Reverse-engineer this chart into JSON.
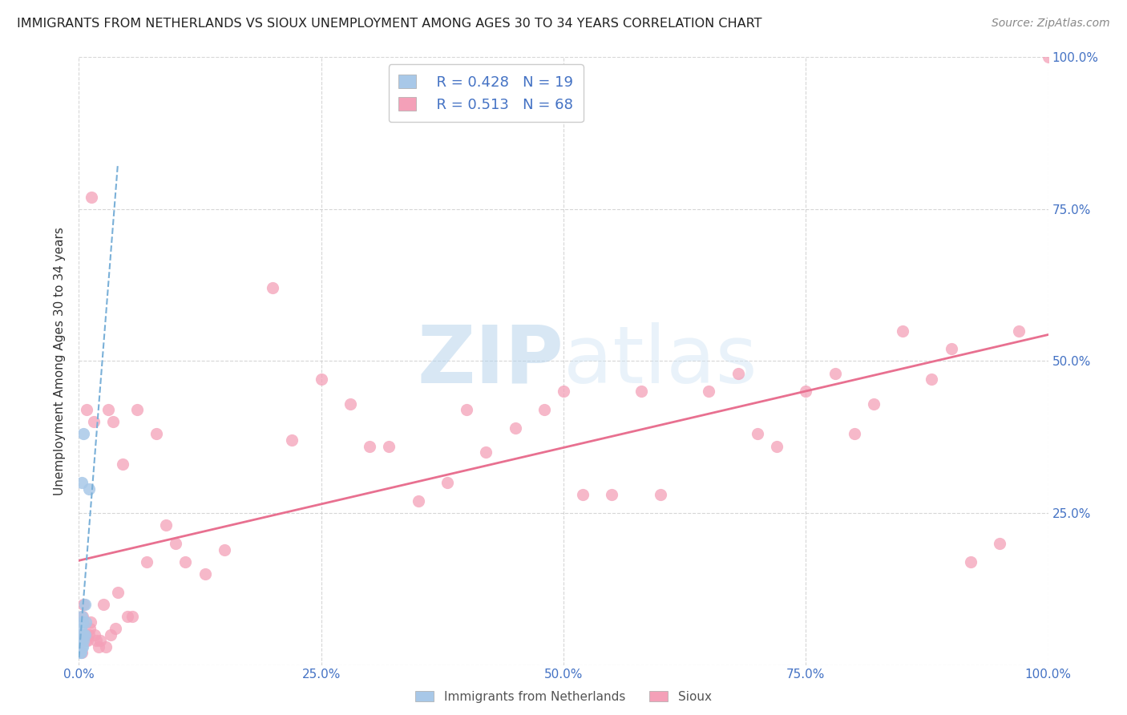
{
  "title": "IMMIGRANTS FROM NETHERLANDS VS SIOUX UNEMPLOYMENT AMONG AGES 30 TO 34 YEARS CORRELATION CHART",
  "source": "Source: ZipAtlas.com",
  "ylabel": "Unemployment Among Ages 30 to 34 years",
  "legend_label_1": "Immigrants from Netherlands",
  "legend_label_2": "Sioux",
  "r1": 0.428,
  "n1": 19,
  "r2": 0.513,
  "n2": 68,
  "color1": "#a8c8e8",
  "color2": "#f4a0b8",
  "trendline1_color": "#7ab0d8",
  "trendline2_color": "#e87090",
  "watermark_zip": "ZIP",
  "watermark_atlas": "atlas",
  "xlim": [
    0,
    1
  ],
  "ylim": [
    0,
    1
  ],
  "xticks": [
    0,
    0.25,
    0.5,
    0.75,
    1.0
  ],
  "yticks": [
    0.25,
    0.5,
    0.75,
    1.0
  ],
  "xticklabels": [
    "0.0%",
    "25.0%",
    "50.0%",
    "75.0%",
    "100.0%"
  ],
  "yticklabels_right": [
    "25.0%",
    "50.0%",
    "75.0%",
    "100.0%"
  ],
  "nl_x": [
    0.001,
    0.001,
    0.002,
    0.002,
    0.002,
    0.003,
    0.003,
    0.003,
    0.003,
    0.004,
    0.004,
    0.004,
    0.005,
    0.005,
    0.005,
    0.006,
    0.006,
    0.007,
    0.01
  ],
  "nl_y": [
    0.02,
    0.05,
    0.02,
    0.04,
    0.06,
    0.03,
    0.04,
    0.3,
    0.08,
    0.03,
    0.07,
    0.05,
    0.04,
    0.38,
    0.05,
    0.05,
    0.1,
    0.07,
    0.29
  ],
  "sx_x": [
    0.003,
    0.005,
    0.007,
    0.008,
    0.01,
    0.012,
    0.013,
    0.015,
    0.016,
    0.018,
    0.02,
    0.022,
    0.025,
    0.028,
    0.03,
    0.033,
    0.035,
    0.038,
    0.04,
    0.045,
    0.05,
    0.055,
    0.06,
    0.07,
    0.08,
    0.09,
    0.1,
    0.11,
    0.13,
    0.15,
    0.2,
    0.22,
    0.25,
    0.28,
    0.3,
    0.32,
    0.35,
    0.38,
    0.4,
    0.42,
    0.45,
    0.48,
    0.5,
    0.52,
    0.55,
    0.58,
    0.6,
    0.65,
    0.68,
    0.7,
    0.72,
    0.75,
    0.78,
    0.8,
    0.82,
    0.85,
    0.88,
    0.9,
    0.92,
    0.95,
    0.97,
    1.0,
    0.003,
    0.004,
    0.006,
    0.007,
    0.009,
    0.011
  ],
  "sx_y": [
    0.05,
    0.1,
    0.04,
    0.42,
    0.05,
    0.07,
    0.77,
    0.4,
    0.05,
    0.04,
    0.03,
    0.04,
    0.1,
    0.03,
    0.42,
    0.05,
    0.4,
    0.06,
    0.12,
    0.33,
    0.08,
    0.08,
    0.42,
    0.17,
    0.38,
    0.23,
    0.2,
    0.17,
    0.15,
    0.19,
    0.62,
    0.37,
    0.47,
    0.43,
    0.36,
    0.36,
    0.27,
    0.3,
    0.42,
    0.35,
    0.39,
    0.42,
    0.45,
    0.28,
    0.28,
    0.45,
    0.28,
    0.45,
    0.48,
    0.38,
    0.36,
    0.45,
    0.48,
    0.38,
    0.43,
    0.55,
    0.47,
    0.52,
    0.17,
    0.2,
    0.55,
    1.0,
    0.02,
    0.08,
    0.05,
    0.05,
    0.04,
    0.06
  ]
}
